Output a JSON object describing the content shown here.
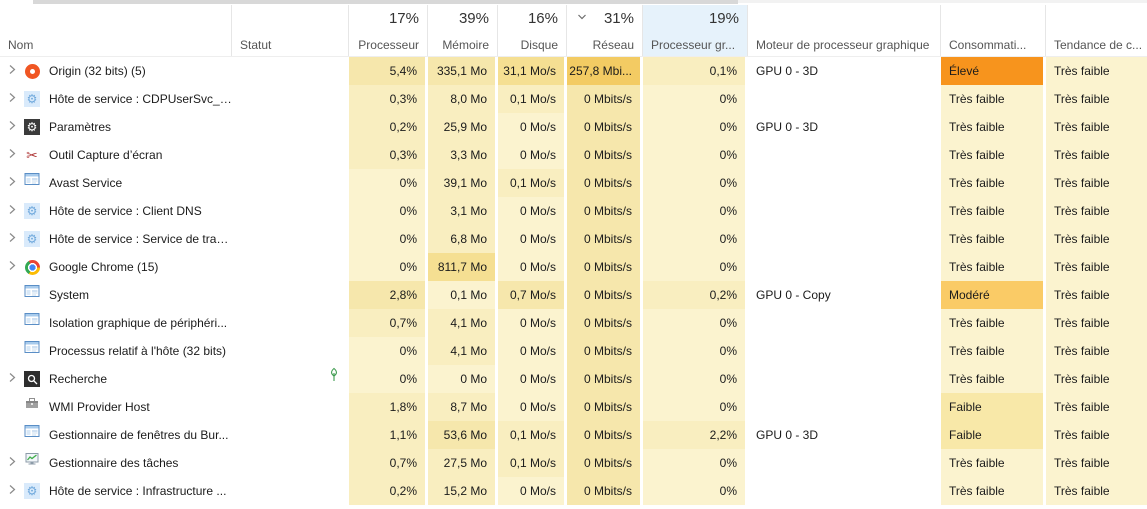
{
  "header": {
    "columns": {
      "name": {
        "label": "Nom",
        "percent": ""
      },
      "status": {
        "label": "Statut",
        "percent": ""
      },
      "cpu": {
        "label": "Processeur",
        "percent": "17%"
      },
      "memory": {
        "label": "Mémoire",
        "percent": "39%"
      },
      "disk": {
        "label": "Disque",
        "percent": "16%"
      },
      "network": {
        "label": "Réseau",
        "percent": "31%",
        "sort_indicator": "chevron-down"
      },
      "gpu": {
        "label": "Processeur gr...",
        "percent": "19%",
        "selected": true
      },
      "gpu_engine": {
        "label": "Moteur de processeur graphique"
      },
      "power": {
        "label": "Consommati..."
      },
      "trend": {
        "label": "Tendance de c..."
      }
    }
  },
  "colors": {
    "heat_scale": [
      "#fbf3cf",
      "#f9eec0",
      "#f6e7ac",
      "#f5df92",
      "#f3cb63"
    ],
    "power_high": "#f7941d",
    "power_moderate": "#facb66",
    "power_low": "#f8e8a8",
    "selected_header": "#e6f2fb"
  },
  "rows": [
    {
      "name": "Origin (32 bits) (5)",
      "icon": "origin-logo",
      "expandable": true,
      "status_leaf": false,
      "cpu": "5,4%",
      "memory": "335,1 Mo",
      "disk": "31,1 Mo/s",
      "network": "257,8 Mbi...",
      "gpu": "0,1%",
      "gpu_engine": "GPU 0 - 3D",
      "power": "Élevé",
      "power_level": "high",
      "trend": "Très faible",
      "heat": {
        "cpu": 2,
        "memory": 2,
        "disk": 3,
        "network": 4,
        "gpu": 1
      }
    },
    {
      "name": "Hôte de service : CDPUserSvc_4...",
      "icon": "service-gear",
      "expandable": true,
      "status_leaf": false,
      "cpu": "0,3%",
      "memory": "8,0 Mo",
      "disk": "0,1 Mo/s",
      "network": "0 Mbits/s",
      "gpu": "0%",
      "gpu_engine": "",
      "power": "Très faible",
      "power_level": "verylow",
      "trend": "Très faible",
      "heat": {
        "cpu": 1,
        "memory": 1,
        "disk": 1,
        "network": 2,
        "gpu": 0
      }
    },
    {
      "name": "Paramètres",
      "icon": "settings-gear",
      "expandable": true,
      "status_leaf": false,
      "cpu": "0,2%",
      "memory": "25,9 Mo",
      "disk": "0 Mo/s",
      "network": "0 Mbits/s",
      "gpu": "0%",
      "gpu_engine": "GPU 0 - 3D",
      "power": "Très faible",
      "power_level": "verylow",
      "trend": "Très faible",
      "heat": {
        "cpu": 1,
        "memory": 1,
        "disk": 0,
        "network": 2,
        "gpu": 0
      }
    },
    {
      "name": "Outil Capture d’écran",
      "icon": "snipping-tool",
      "expandable": true,
      "status_leaf": false,
      "cpu": "0,3%",
      "memory": "3,3 Mo",
      "disk": "0 Mo/s",
      "network": "0 Mbits/s",
      "gpu": "0%",
      "gpu_engine": "",
      "power": "Très faible",
      "power_level": "verylow",
      "trend": "Très faible",
      "heat": {
        "cpu": 1,
        "memory": 1,
        "disk": 0,
        "network": 2,
        "gpu": 0
      }
    },
    {
      "name": "Avast Service",
      "icon": "window-app",
      "expandable": true,
      "status_leaf": false,
      "cpu": "0%",
      "memory": "39,1 Mo",
      "disk": "0,1 Mo/s",
      "network": "0 Mbits/s",
      "gpu": "0%",
      "gpu_engine": "",
      "power": "Très faible",
      "power_level": "verylow",
      "trend": "Très faible",
      "heat": {
        "cpu": 0,
        "memory": 1,
        "disk": 1,
        "network": 2,
        "gpu": 0
      }
    },
    {
      "name": "Hôte de service : Client DNS",
      "icon": "service-gear",
      "expandable": true,
      "status_leaf": false,
      "cpu": "0%",
      "memory": "3,1 Mo",
      "disk": "0 Mo/s",
      "network": "0 Mbits/s",
      "gpu": "0%",
      "gpu_engine": "",
      "power": "Très faible",
      "power_level": "verylow",
      "trend": "Très faible",
      "heat": {
        "cpu": 0,
        "memory": 1,
        "disk": 0,
        "network": 2,
        "gpu": 0
      }
    },
    {
      "name": "Hôte de service : Service de tran...",
      "icon": "service-gear",
      "expandable": true,
      "status_leaf": false,
      "cpu": "0%",
      "memory": "6,8 Mo",
      "disk": "0 Mo/s",
      "network": "0 Mbits/s",
      "gpu": "0%",
      "gpu_engine": "",
      "power": "Très faible",
      "power_level": "verylow",
      "trend": "Très faible",
      "heat": {
        "cpu": 0,
        "memory": 1,
        "disk": 0,
        "network": 2,
        "gpu": 0
      }
    },
    {
      "name": "Google Chrome (15)",
      "icon": "chrome-logo",
      "expandable": true,
      "status_leaf": false,
      "cpu": "0%",
      "memory": "811,7 Mo",
      "disk": "0 Mo/s",
      "network": "0 Mbits/s",
      "gpu": "0%",
      "gpu_engine": "",
      "power": "Très faible",
      "power_level": "verylow",
      "trend": "Très faible",
      "heat": {
        "cpu": 0,
        "memory": 3,
        "disk": 0,
        "network": 2,
        "gpu": 0
      }
    },
    {
      "name": "System",
      "icon": "window-app",
      "expandable": false,
      "status_leaf": false,
      "cpu": "2,8%",
      "memory": "0,1 Mo",
      "disk": "0,7 Mo/s",
      "network": "0 Mbits/s",
      "gpu": "0,2%",
      "gpu_engine": "GPU 0 - Copy",
      "power": "Modéré",
      "power_level": "moderate",
      "trend": "Très faible",
      "heat": {
        "cpu": 2,
        "memory": 0,
        "disk": 2,
        "network": 2,
        "gpu": 1
      }
    },
    {
      "name": "Isolation graphique de périphéri...",
      "icon": "window-app",
      "expandable": false,
      "status_leaf": false,
      "cpu": "0,7%",
      "memory": "4,1 Mo",
      "disk": "0 Mo/s",
      "network": "0 Mbits/s",
      "gpu": "0%",
      "gpu_engine": "",
      "power": "Très faible",
      "power_level": "verylow",
      "trend": "Très faible",
      "heat": {
        "cpu": 1,
        "memory": 1,
        "disk": 0,
        "network": 2,
        "gpu": 0
      }
    },
    {
      "name": "Processus relatif à l'hôte (32 bits)",
      "icon": "window-app",
      "expandable": false,
      "status_leaf": false,
      "cpu": "0%",
      "memory": "4,1 Mo",
      "disk": "0 Mo/s",
      "network": "0 Mbits/s",
      "gpu": "0%",
      "gpu_engine": "",
      "power": "Très faible",
      "power_level": "verylow",
      "trend": "Très faible",
      "heat": {
        "cpu": 0,
        "memory": 1,
        "disk": 0,
        "network": 2,
        "gpu": 0
      }
    },
    {
      "name": "Recherche",
      "icon": "search-app",
      "expandable": true,
      "status_leaf": true,
      "cpu": "0%",
      "memory": "0 Mo",
      "disk": "0 Mo/s",
      "network": "0 Mbits/s",
      "gpu": "0%",
      "gpu_engine": "",
      "power": "Très faible",
      "power_level": "verylow",
      "trend": "Très faible",
      "heat": {
        "cpu": 0,
        "memory": 0,
        "disk": 0,
        "network": 2,
        "gpu": 0
      }
    },
    {
      "name": "WMI Provider Host",
      "icon": "wmi-toolbox",
      "expandable": false,
      "status_leaf": false,
      "cpu": "1,8%",
      "memory": "8,7 Mo",
      "disk": "0 Mo/s",
      "network": "0 Mbits/s",
      "gpu": "0%",
      "gpu_engine": "",
      "power": "Faible",
      "power_level": "low",
      "trend": "Très faible",
      "heat": {
        "cpu": 1,
        "memory": 1,
        "disk": 0,
        "network": 2,
        "gpu": 0
      }
    },
    {
      "name": "Gestionnaire de fenêtres du Bur...",
      "icon": "window-app",
      "expandable": false,
      "status_leaf": false,
      "cpu": "1,1%",
      "memory": "53,6 Mo",
      "disk": "0,1 Mo/s",
      "network": "0 Mbits/s",
      "gpu": "2,2%",
      "gpu_engine": "GPU 0 - 3D",
      "power": "Faible",
      "power_level": "low",
      "trend": "Très faible",
      "heat": {
        "cpu": 1,
        "memory": 2,
        "disk": 1,
        "network": 2,
        "gpu": 1
      }
    },
    {
      "name": "Gestionnaire des tâches",
      "icon": "taskmanager-monitor",
      "expandable": true,
      "status_leaf": false,
      "cpu": "0,7%",
      "memory": "27,5 Mo",
      "disk": "0,1 Mo/s",
      "network": "0 Mbits/s",
      "gpu": "0%",
      "gpu_engine": "",
      "power": "Très faible",
      "power_level": "verylow",
      "trend": "Très faible",
      "heat": {
        "cpu": 1,
        "memory": 1,
        "disk": 1,
        "network": 2,
        "gpu": 0
      }
    },
    {
      "name": "Hôte de service : Infrastructure ...",
      "icon": "service-gear",
      "expandable": true,
      "status_leaf": false,
      "cpu": "0,2%",
      "memory": "15,2 Mo",
      "disk": "0 Mo/s",
      "network": "0 Mbits/s",
      "gpu": "0%",
      "gpu_engine": "",
      "power": "Très faible",
      "power_level": "verylow",
      "trend": "Très faible",
      "heat": {
        "cpu": 1,
        "memory": 1,
        "disk": 0,
        "network": 2,
        "gpu": 0
      }
    }
  ]
}
